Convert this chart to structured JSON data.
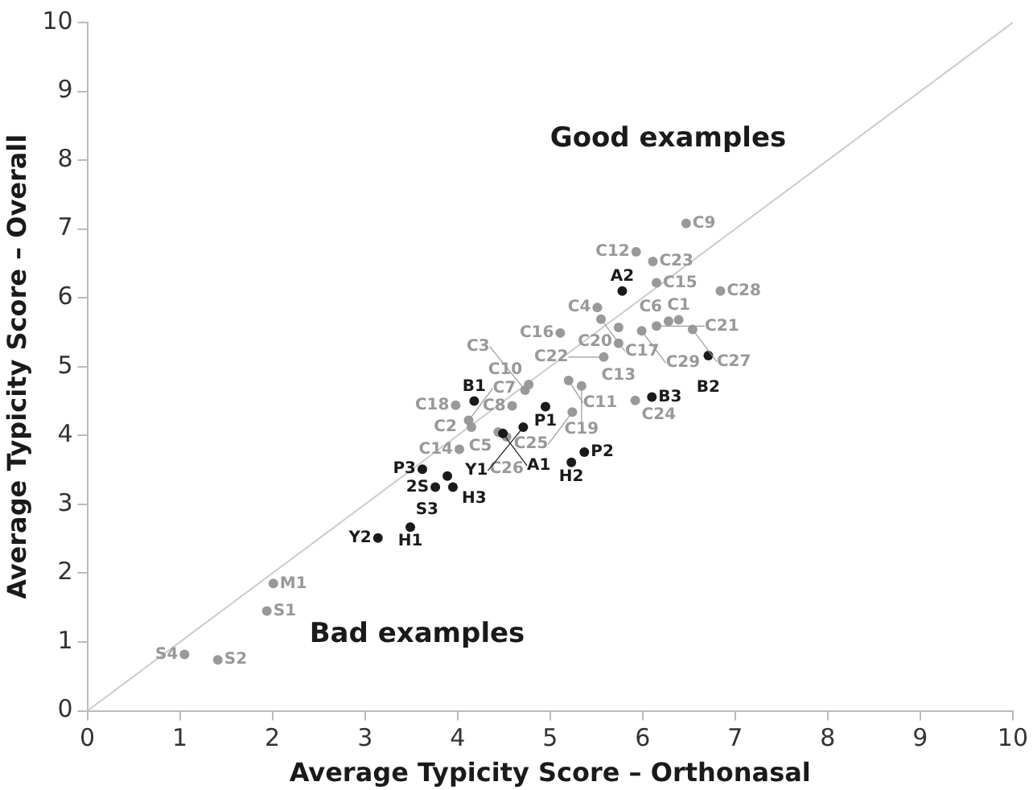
{
  "chart_data": {
    "type": "scatter",
    "xlabel": "Average Typicity Score – Orthonasal",
    "ylabel": "Average Typicity Score – Overall",
    "xlim": [
      0,
      10
    ],
    "ylim": [
      0,
      10
    ],
    "xticks": [
      0,
      1,
      2,
      3,
      4,
      5,
      6,
      7,
      8,
      9,
      10
    ],
    "yticks": [
      0,
      1,
      2,
      3,
      4,
      5,
      6,
      7,
      8,
      9,
      10
    ],
    "grid": false,
    "legend": false,
    "marker": "circle",
    "series": [
      {
        "type": "line",
        "color": "#cccccc",
        "marker": "none",
        "x": [
          0,
          10
        ],
        "values": [
          0,
          10
        ]
      },
      {
        "color": "#999999",
        "x": [
          6.47,
          5.93,
          6.11,
          6.15,
          6.84,
          5.51,
          5.55,
          6.28,
          6.39,
          5.11,
          5.74,
          5.99,
          6.15,
          6.54,
          5.74,
          5.58,
          4.77,
          5.2,
          5.34,
          4.59,
          4.73,
          5.92,
          5.24,
          3.98,
          4.12,
          4.15,
          4.44,
          4.02,
          4.53,
          2.01,
          1.94,
          1.05,
          1.41
        ],
        "values": [
          7.08,
          6.67,
          6.53,
          6.22,
          6.1,
          5.86,
          5.69,
          5.66,
          5.68,
          5.49,
          5.57,
          5.52,
          5.59,
          5.54,
          5.34,
          5.14,
          4.74,
          4.8,
          4.72,
          4.43,
          4.66,
          4.51,
          4.34,
          4.44,
          4.22,
          4.12,
          4.05,
          3.8,
          3.98,
          1.85,
          1.45,
          0.82,
          0.74
        ]
      },
      {
        "color": "#1a1a1a",
        "x": [
          5.78,
          6.71,
          4.18,
          4.95,
          6.1,
          4.49,
          4.71,
          3.62,
          3.89,
          3.76,
          3.95,
          3.49,
          3.14,
          5.37,
          5.23
        ],
        "values": [
          6.1,
          5.16,
          4.5,
          4.42,
          4.56,
          4.03,
          4.12,
          3.51,
          3.41,
          3.25,
          3.25,
          2.67,
          2.51,
          3.76,
          3.61
        ]
      }
    ],
    "annotations": [
      "Good examples",
      "Bad examples",
      {
        "text": "C9",
        "x": 6.47,
        "y": 7.08
      },
      {
        "text": "C12",
        "x": 5.93,
        "y": 6.67
      },
      {
        "text": "C23",
        "x": 6.11,
        "y": 6.53
      },
      {
        "text": "C15",
        "x": 6.15,
        "y": 6.22
      },
      {
        "text": "C28",
        "x": 6.84,
        "y": 6.1
      },
      {
        "text": "C4",
        "x": 5.51,
        "y": 5.86
      },
      {
        "text": "C17",
        "x": 5.55,
        "y": 5.69
      },
      {
        "text": "C6",
        "x": 6.28,
        "y": 5.66
      },
      {
        "text": "C1",
        "x": 6.39,
        "y": 5.68
      },
      {
        "text": "C16",
        "x": 5.11,
        "y": 5.49
      },
      {
        "text": "C20",
        "x": 5.74,
        "y": 5.57
      },
      {
        "text": "C29",
        "x": 5.99,
        "y": 5.52
      },
      {
        "text": "C21",
        "x": 6.15,
        "y": 5.59
      },
      {
        "text": "C27",
        "x": 6.54,
        "y": 5.54
      },
      {
        "text": "C13",
        "x": 5.74,
        "y": 5.34
      },
      {
        "text": "C22",
        "x": 5.58,
        "y": 5.14
      },
      {
        "text": "C10",
        "x": 4.77,
        "y": 4.74
      },
      {
        "text": "C11",
        "x": 5.2,
        "y": 4.8
      },
      {
        "text": "C19",
        "x": 5.34,
        "y": 4.72
      },
      {
        "text": "C8",
        "x": 4.59,
        "y": 4.43
      },
      {
        "text": "C3",
        "x": 4.73,
        "y": 4.66
      },
      {
        "text": "C24",
        "x": 5.92,
        "y": 4.51
      },
      {
        "text": "C25",
        "x": 5.24,
        "y": 4.34
      },
      {
        "text": "C18",
        "x": 3.98,
        "y": 4.44
      },
      {
        "text": "C7",
        "x": 4.12,
        "y": 4.22
      },
      {
        "text": "C2",
        "x": 4.15,
        "y": 4.12
      },
      {
        "text": "C5",
        "x": 4.44,
        "y": 4.05
      },
      {
        "text": "C14",
        "x": 4.02,
        "y": 3.8
      },
      {
        "text": "C26",
        "x": 4.53,
        "y": 3.98
      },
      {
        "text": "M1",
        "x": 2.01,
        "y": 1.85
      },
      {
        "text": "S1",
        "x": 1.94,
        "y": 1.45
      },
      {
        "text": "S4",
        "x": 1.05,
        "y": 0.82
      },
      {
        "text": "S2",
        "x": 1.41,
        "y": 0.74
      },
      {
        "text": "A2",
        "x": 5.78,
        "y": 6.1
      },
      {
        "text": "B2",
        "x": 6.71,
        "y": 5.16
      },
      {
        "text": "B1",
        "x": 4.18,
        "y": 4.5
      },
      {
        "text": "P1",
        "x": 4.95,
        "y": 4.42
      },
      {
        "text": "B3",
        "x": 6.1,
        "y": 4.56
      },
      {
        "text": "A1",
        "x": 4.49,
        "y": 4.03
      },
      {
        "text": "Y1",
        "x": 4.71,
        "y": 4.12
      },
      {
        "text": "P3",
        "x": 3.62,
        "y": 3.51
      },
      {
        "text": "H3",
        "x": 3.89,
        "y": 3.41
      },
      {
        "text": "2S",
        "x": 3.76,
        "y": 3.25
      },
      {
        "text": "S3",
        "x": 3.95,
        "y": 3.25
      },
      {
        "text": "H1",
        "x": 3.49,
        "y": 2.67
      },
      {
        "text": "Y2",
        "x": 3.14,
        "y": 2.51
      },
      {
        "text": "P2",
        "x": 5.37,
        "y": 3.76
      },
      {
        "text": "H2",
        "x": 5.23,
        "y": 3.61
      }
    ]
  }
}
